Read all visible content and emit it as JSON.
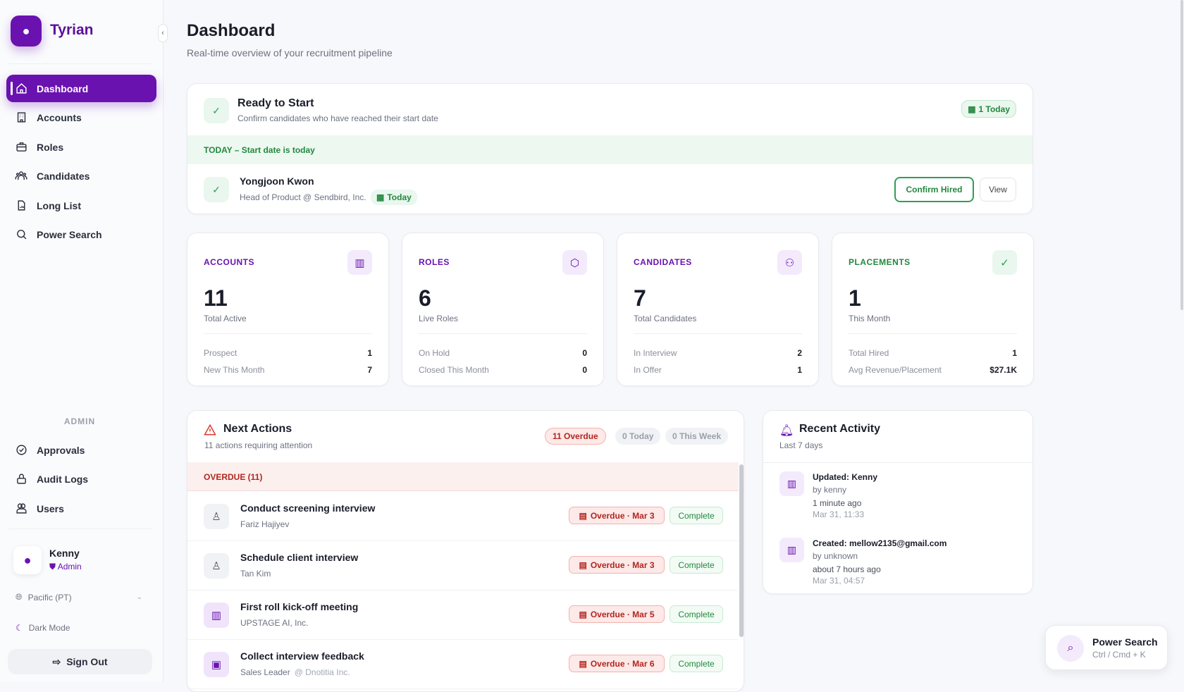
{
  "brand": "Tyrian",
  "nav": [
    {
      "label": "Dashboard",
      "icon": "home-icon"
    },
    {
      "label": "Accounts",
      "icon": "building-icon"
    },
    {
      "label": "Roles",
      "icon": "briefcase-icon"
    },
    {
      "label": "Candidates",
      "icon": "people-icon"
    },
    {
      "label": "Long List",
      "icon": "document-chart-icon"
    },
    {
      "label": "Power Search",
      "icon": "search-icon"
    }
  ],
  "admin_heading": "ADMIN",
  "admin_nav": [
    {
      "label": "Approvals",
      "icon": "check-badge-icon"
    },
    {
      "label": "Audit Logs",
      "icon": "lock-icon"
    },
    {
      "label": "Users",
      "icon": "users-icon"
    }
  ],
  "user": {
    "name": "Kenny",
    "role": "Admin"
  },
  "timezone": "Pacific (PT)",
  "dark_mode": "Dark Mode",
  "sign_out": "Sign Out",
  "page": {
    "title": "Dashboard",
    "subtitle": "Real-time overview of your recruitment pipeline"
  },
  "ready": {
    "title": "Ready to Start",
    "subtitle": "Confirm candidates who have reached their start date",
    "badge": "1 Today",
    "band": "TODAY – Start date is today",
    "candidate": {
      "name": "Yongjoon Kwon",
      "detail": "Head of Product @ Sendbird, Inc.",
      "tag": "Today"
    },
    "confirm": "Confirm Hired",
    "view": "View"
  },
  "stats": [
    {
      "label": "ACCOUNTS",
      "value": "11",
      "caption": "Total Active",
      "rows": [
        [
          "Prospect",
          "1"
        ],
        [
          "New This Month",
          "7"
        ]
      ],
      "color": "#6a12b0"
    },
    {
      "label": "ROLES",
      "value": "6",
      "caption": "Live Roles",
      "rows": [
        [
          "On Hold",
          "0"
        ],
        [
          "Closed This Month",
          "0"
        ]
      ],
      "color": "#6a12b0"
    },
    {
      "label": "CANDIDATES",
      "value": "7",
      "caption": "Total Candidates",
      "rows": [
        [
          "In Interview",
          "2"
        ],
        [
          "In Offer",
          "1"
        ]
      ],
      "color": "#6a12b0"
    },
    {
      "label": "PLACEMENTS",
      "value": "1",
      "caption": "This Month",
      "rows": [
        [
          "Total Hired",
          "1"
        ],
        [
          "Avg Revenue/Placement",
          "$27.1K"
        ]
      ],
      "color": "#23883f"
    }
  ],
  "next_actions": {
    "title": "Next Actions",
    "subtitle": "11 actions requiring attention",
    "filters": [
      "11 Overdue",
      "0 Today",
      "0 This Week"
    ],
    "section": "OVERDUE (11)",
    "complete": "Complete",
    "items": [
      {
        "title": "Conduct screening interview",
        "sub": "Fariz Hajiyev",
        "extra": "",
        "due": "Overdue · Mar 3",
        "type": "person"
      },
      {
        "title": "Schedule client interview",
        "sub": "Tan Kim",
        "extra": "",
        "due": "Overdue · Mar 3",
        "type": "person"
      },
      {
        "title": "First roll kick-off meeting",
        "sub": "UPSTAGE AI, Inc.",
        "extra": "",
        "due": "Overdue · Mar 5",
        "type": "building"
      },
      {
        "title": "Collect interview feedback",
        "sub": "Sales Leader",
        "extra": "@ Dnotitia Inc.",
        "due": "Overdue · Mar 6",
        "type": "briefcase"
      }
    ]
  },
  "recent": {
    "title": "Recent Activity",
    "subtitle": "Last 7 days",
    "events": [
      {
        "title": "Updated: Kenny",
        "by": "by kenny",
        "ago": "1 minute ago",
        "time": "Mar 31, 11:33"
      },
      {
        "title": "Created: mellow2135@gmail.com",
        "by": "by unknown",
        "ago": "about 7 hours ago",
        "time": "Mar 31, 04:57"
      }
    ]
  },
  "power_search": {
    "title": "Power Search",
    "shortcut": "Ctrl / Cmd + K"
  }
}
